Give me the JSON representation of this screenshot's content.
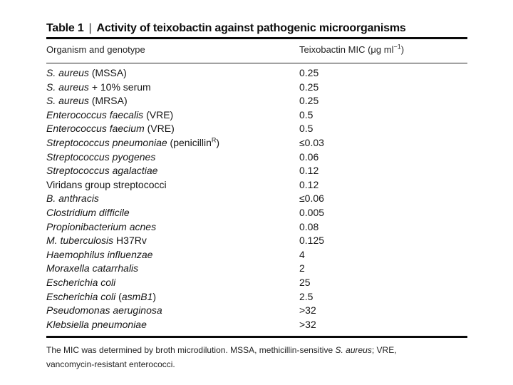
{
  "page": {
    "background_color": "#ffffff",
    "text_color": "#161616",
    "rule_color": "#0a0a0a"
  },
  "table": {
    "title": {
      "label": "Table 1",
      "separator": "|",
      "text": "Activity of teixobactin against pathogenic microorganisms"
    },
    "columns": {
      "organism": "Organism and genotype",
      "mic_prefix": "Teixobactin MIC (μg ml",
      "mic_sup": "−1",
      "mic_suffix": ")"
    },
    "rows": [
      {
        "organism": [
          {
            "t": "S. aureus",
            "i": true
          },
          {
            "t": " (MSSA)"
          }
        ],
        "mic": "0.25"
      },
      {
        "organism": [
          {
            "t": "S. aureus",
            "i": true
          },
          {
            "t": " + 10% serum"
          }
        ],
        "mic": "0.25"
      },
      {
        "organism": [
          {
            "t": "S. aureus",
            "i": true
          },
          {
            "t": " (MRSA)"
          }
        ],
        "mic": "0.25"
      },
      {
        "organism": [
          {
            "t": "Enterococcus faecalis",
            "i": true
          },
          {
            "t": " (VRE)"
          }
        ],
        "mic": "0.5"
      },
      {
        "organism": [
          {
            "t": "Enterococcus faecium",
            "i": true
          },
          {
            "t": " (VRE)"
          }
        ],
        "mic": "0.5"
      },
      {
        "organism": [
          {
            "t": "Streptococcus pneumoniae",
            "i": true
          },
          {
            "t": " (penicillin"
          },
          {
            "t": "R",
            "sup": true
          },
          {
            "t": ")"
          }
        ],
        "mic": "≤0.03"
      },
      {
        "organism": [
          {
            "t": "Streptococcus pyogenes",
            "i": true
          }
        ],
        "mic": "0.06"
      },
      {
        "organism": [
          {
            "t": "Streptococcus agalactiae",
            "i": true
          }
        ],
        "mic": "0.12"
      },
      {
        "organism": [
          {
            "t": "Viridans group streptococci"
          }
        ],
        "mic": "0.12"
      },
      {
        "organism": [
          {
            "t": "B. anthracis",
            "i": true
          }
        ],
        "mic": "≤0.06"
      },
      {
        "organism": [
          {
            "t": "Clostridium difficile",
            "i": true
          }
        ],
        "mic": "0.005"
      },
      {
        "organism": [
          {
            "t": "Propionibacterium acnes",
            "i": true
          }
        ],
        "mic": "0.08"
      },
      {
        "organism": [
          {
            "t": "M. tuberculosis",
            "i": true
          },
          {
            "t": " H37Rv"
          }
        ],
        "mic": "0.125"
      },
      {
        "organism": [
          {
            "t": "Haemophilus influenzae",
            "i": true
          }
        ],
        "mic": "4"
      },
      {
        "organism": [
          {
            "t": "Moraxella catarrhalis",
            "i": true
          }
        ],
        "mic": "2"
      },
      {
        "organism": [
          {
            "t": "Escherichia coli",
            "i": true
          }
        ],
        "mic": "25"
      },
      {
        "organism": [
          {
            "t": "Escherichia coli",
            "i": true
          },
          {
            "t": " ("
          },
          {
            "t": "asmB1",
            "i": true
          },
          {
            "t": ")"
          }
        ],
        "mic": "2.5"
      },
      {
        "organism": [
          {
            "t": "Pseudomonas aeruginosa",
            "i": true
          }
        ],
        "mic": ">32"
      },
      {
        "organism": [
          {
            "t": "Klebsiella pneumoniae",
            "i": true
          }
        ],
        "mic": ">32"
      }
    ],
    "footnote": {
      "lines": [
        [
          {
            "t": "The MIC was determined by broth microdilution. MSSA, methicillin-sensitive "
          },
          {
            "t": "S. aureus",
            "i": true
          },
          {
            "t": "; VRE,"
          }
        ],
        [
          {
            "t": "vancomycin-resistant enterococci."
          }
        ]
      ]
    }
  }
}
